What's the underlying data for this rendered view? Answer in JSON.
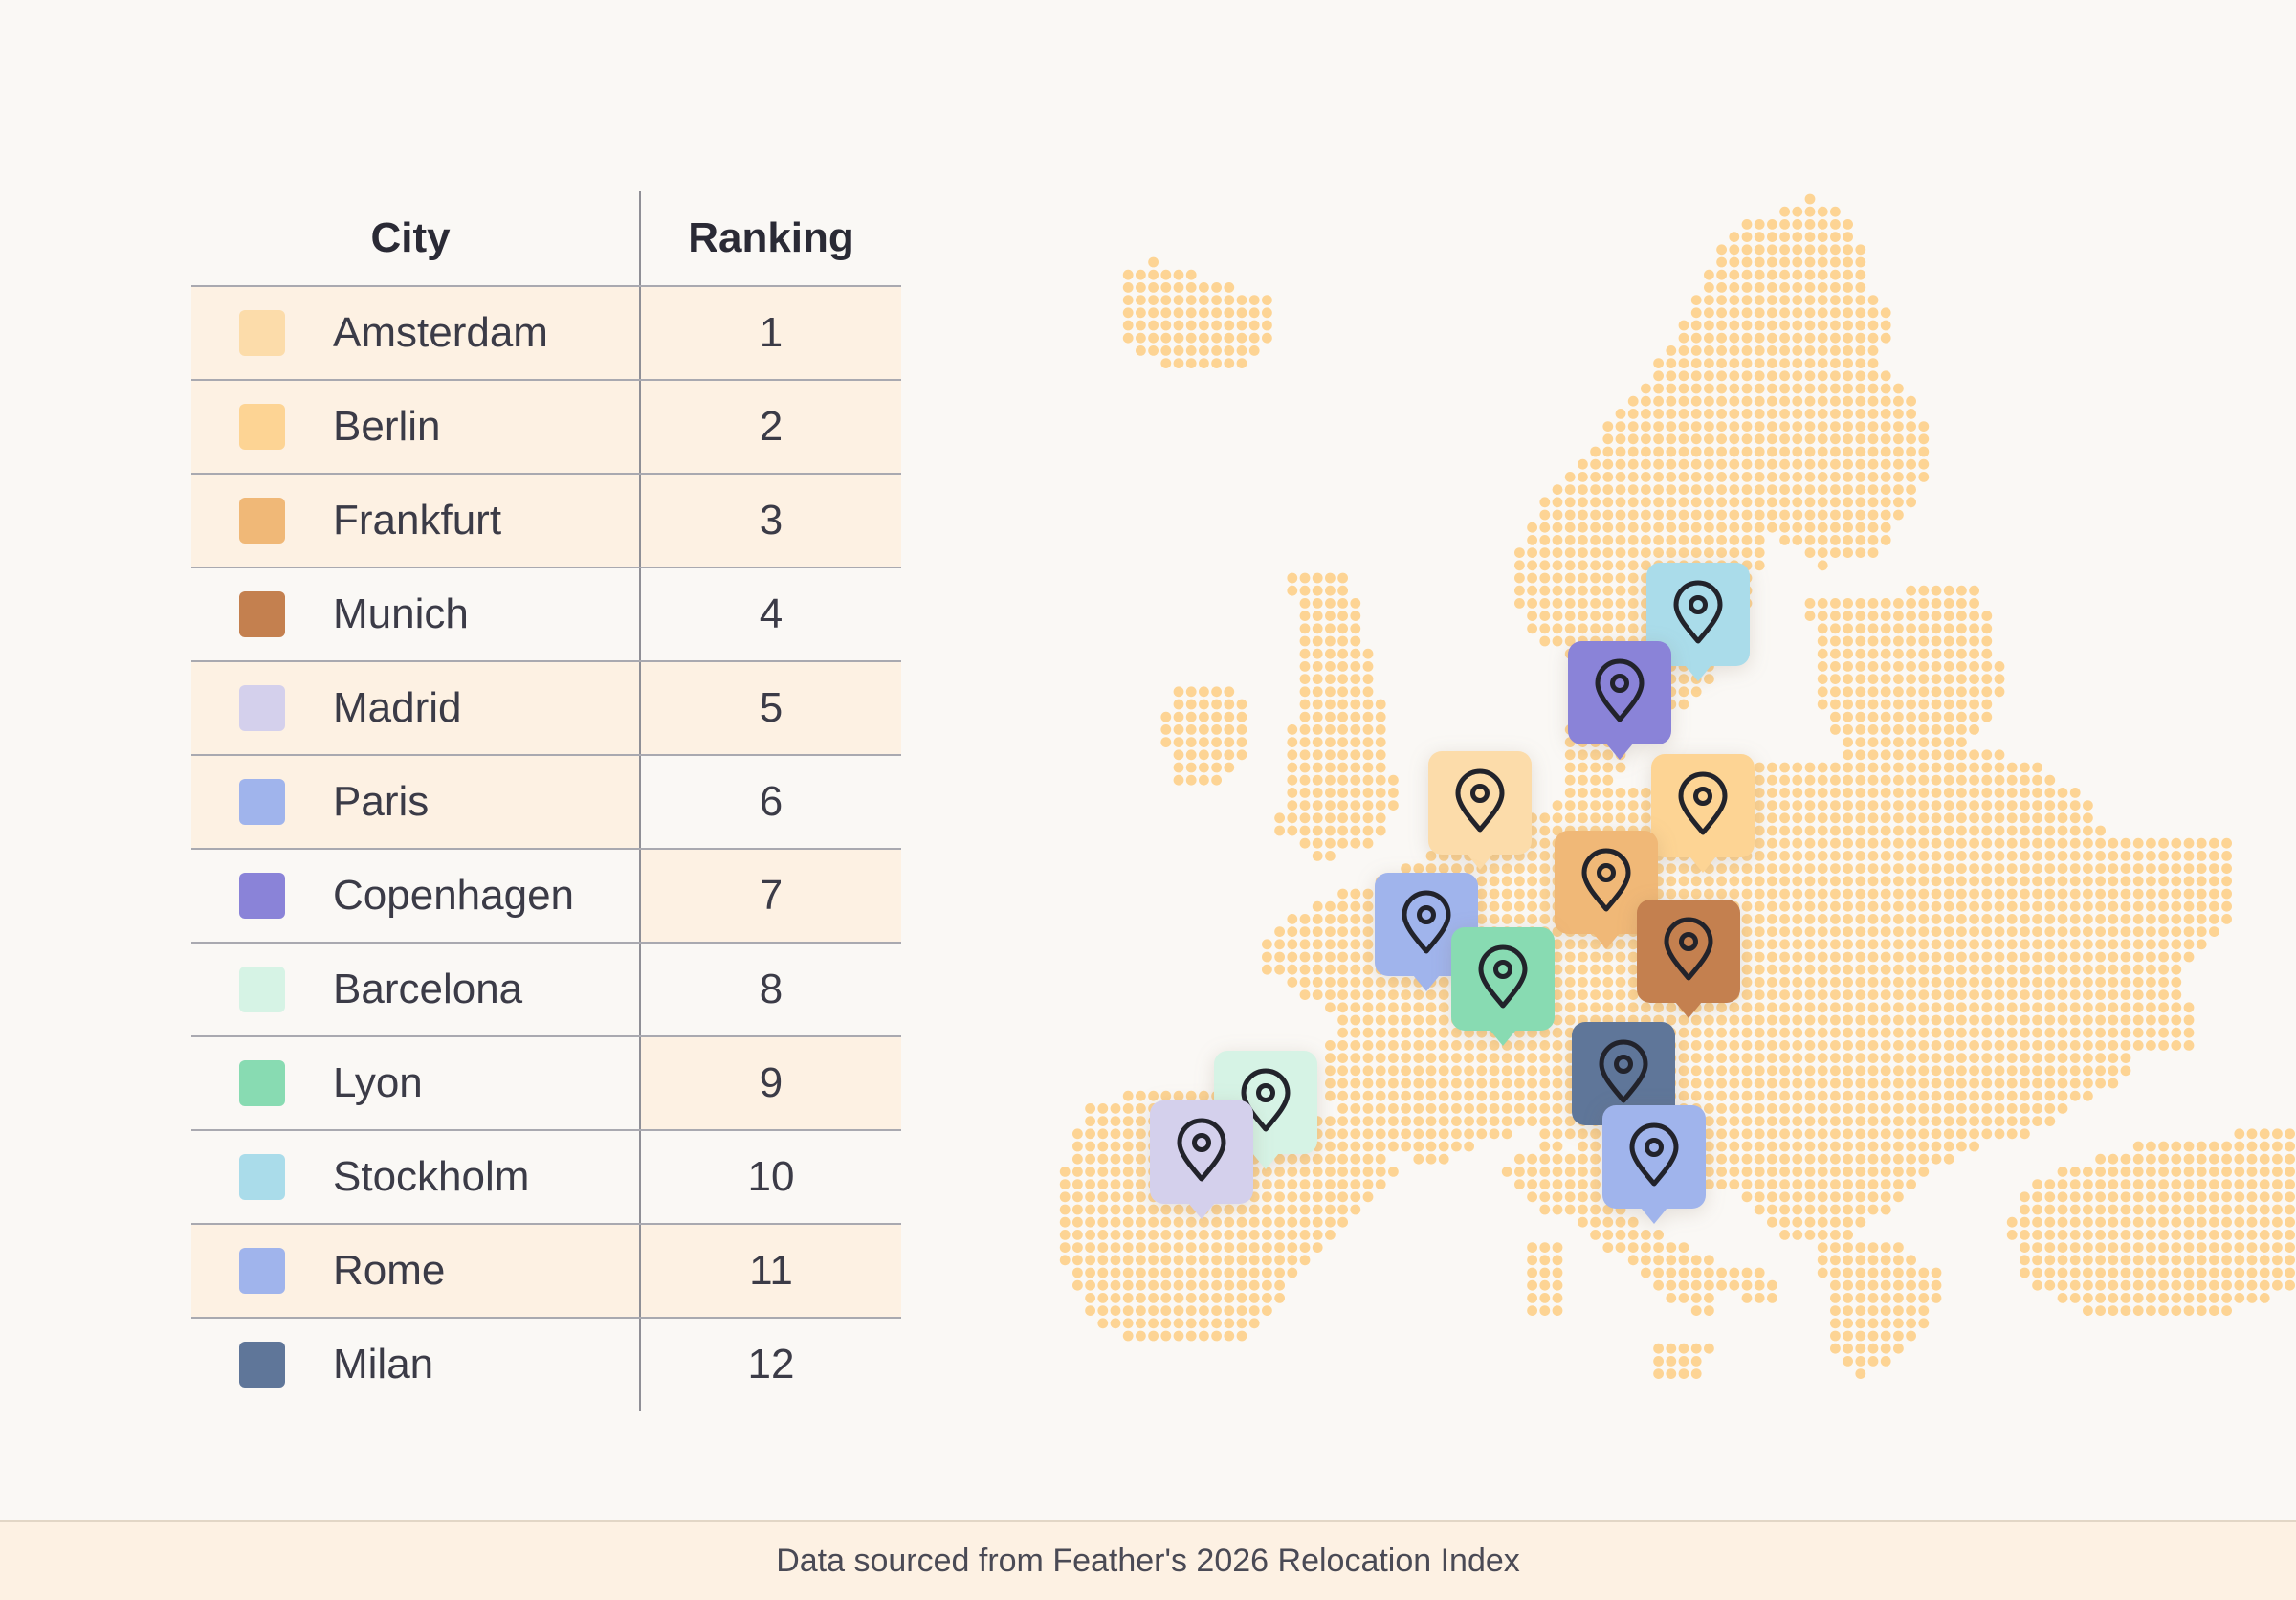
{
  "table": {
    "header_city": "City",
    "header_ranking": "Ranking",
    "rows": [
      {
        "city": "Amsterdam",
        "rank": "1",
        "color": "#fcdcaa",
        "city_shaded": true,
        "rank_shaded": true
      },
      {
        "city": "Berlin",
        "rank": "2",
        "color": "#fdd494",
        "city_shaded": true,
        "rank_shaded": true
      },
      {
        "city": "Frankfurt",
        "rank": "3",
        "color": "#f0b877",
        "city_shaded": true,
        "rank_shaded": true
      },
      {
        "city": "Munich",
        "rank": "4",
        "color": "#c4804f",
        "city_shaded": false,
        "rank_shaded": false
      },
      {
        "city": "Madrid",
        "rank": "5",
        "color": "#d4d0ec",
        "city_shaded": true,
        "rank_shaded": true
      },
      {
        "city": "Paris",
        "rank": "6",
        "color": "#a0b4ec",
        "city_shaded": true,
        "rank_shaded": false
      },
      {
        "city": "Copenhagen",
        "rank": "7",
        "color": "#8a83d8",
        "city_shaded": false,
        "rank_shaded": true
      },
      {
        "city": "Barcelona",
        "rank": "8",
        "color": "#d6f3e5",
        "city_shaded": false,
        "rank_shaded": false
      },
      {
        "city": "Lyon",
        "rank": "9",
        "color": "#88dbb2",
        "city_shaded": false,
        "rank_shaded": true
      },
      {
        "city": "Stockholm",
        "rank": "10",
        "color": "#aadcea",
        "city_shaded": false,
        "rank_shaded": false
      },
      {
        "city": "Rome",
        "rank": "11",
        "color": "#a0b4ec",
        "city_shaded": true,
        "rank_shaded": true
      },
      {
        "city": "Milan",
        "rank": "12",
        "color": "#5f7699",
        "city_shaded": false,
        "rank_shaded": false
      }
    ]
  },
  "map": {
    "dot_color": "#fdd494",
    "pin_icon": "location-pin-icon",
    "pins": [
      {
        "city": "Stockholm",
        "color": "#aadcea"
      },
      {
        "city": "Copenhagen",
        "color": "#8a83d8"
      },
      {
        "city": "Amsterdam",
        "color": "#fcdcaa"
      },
      {
        "city": "Berlin",
        "color": "#fdd494"
      },
      {
        "city": "Frankfurt",
        "color": "#f0b877"
      },
      {
        "city": "Munich",
        "color": "#c4804f"
      },
      {
        "city": "Paris",
        "color": "#a0b4ec"
      },
      {
        "city": "Lyon",
        "color": "#88dbb2"
      },
      {
        "city": "Milan",
        "color": "#5f7699"
      },
      {
        "city": "Barcelona",
        "color": "#d6f3e5"
      },
      {
        "city": "Madrid",
        "color": "#d4d0ec"
      },
      {
        "city": "Rome",
        "color": "#a0b4ec"
      }
    ]
  },
  "footer": {
    "source_text": "Data sourced from Feather's 2026 Relocation Index"
  }
}
